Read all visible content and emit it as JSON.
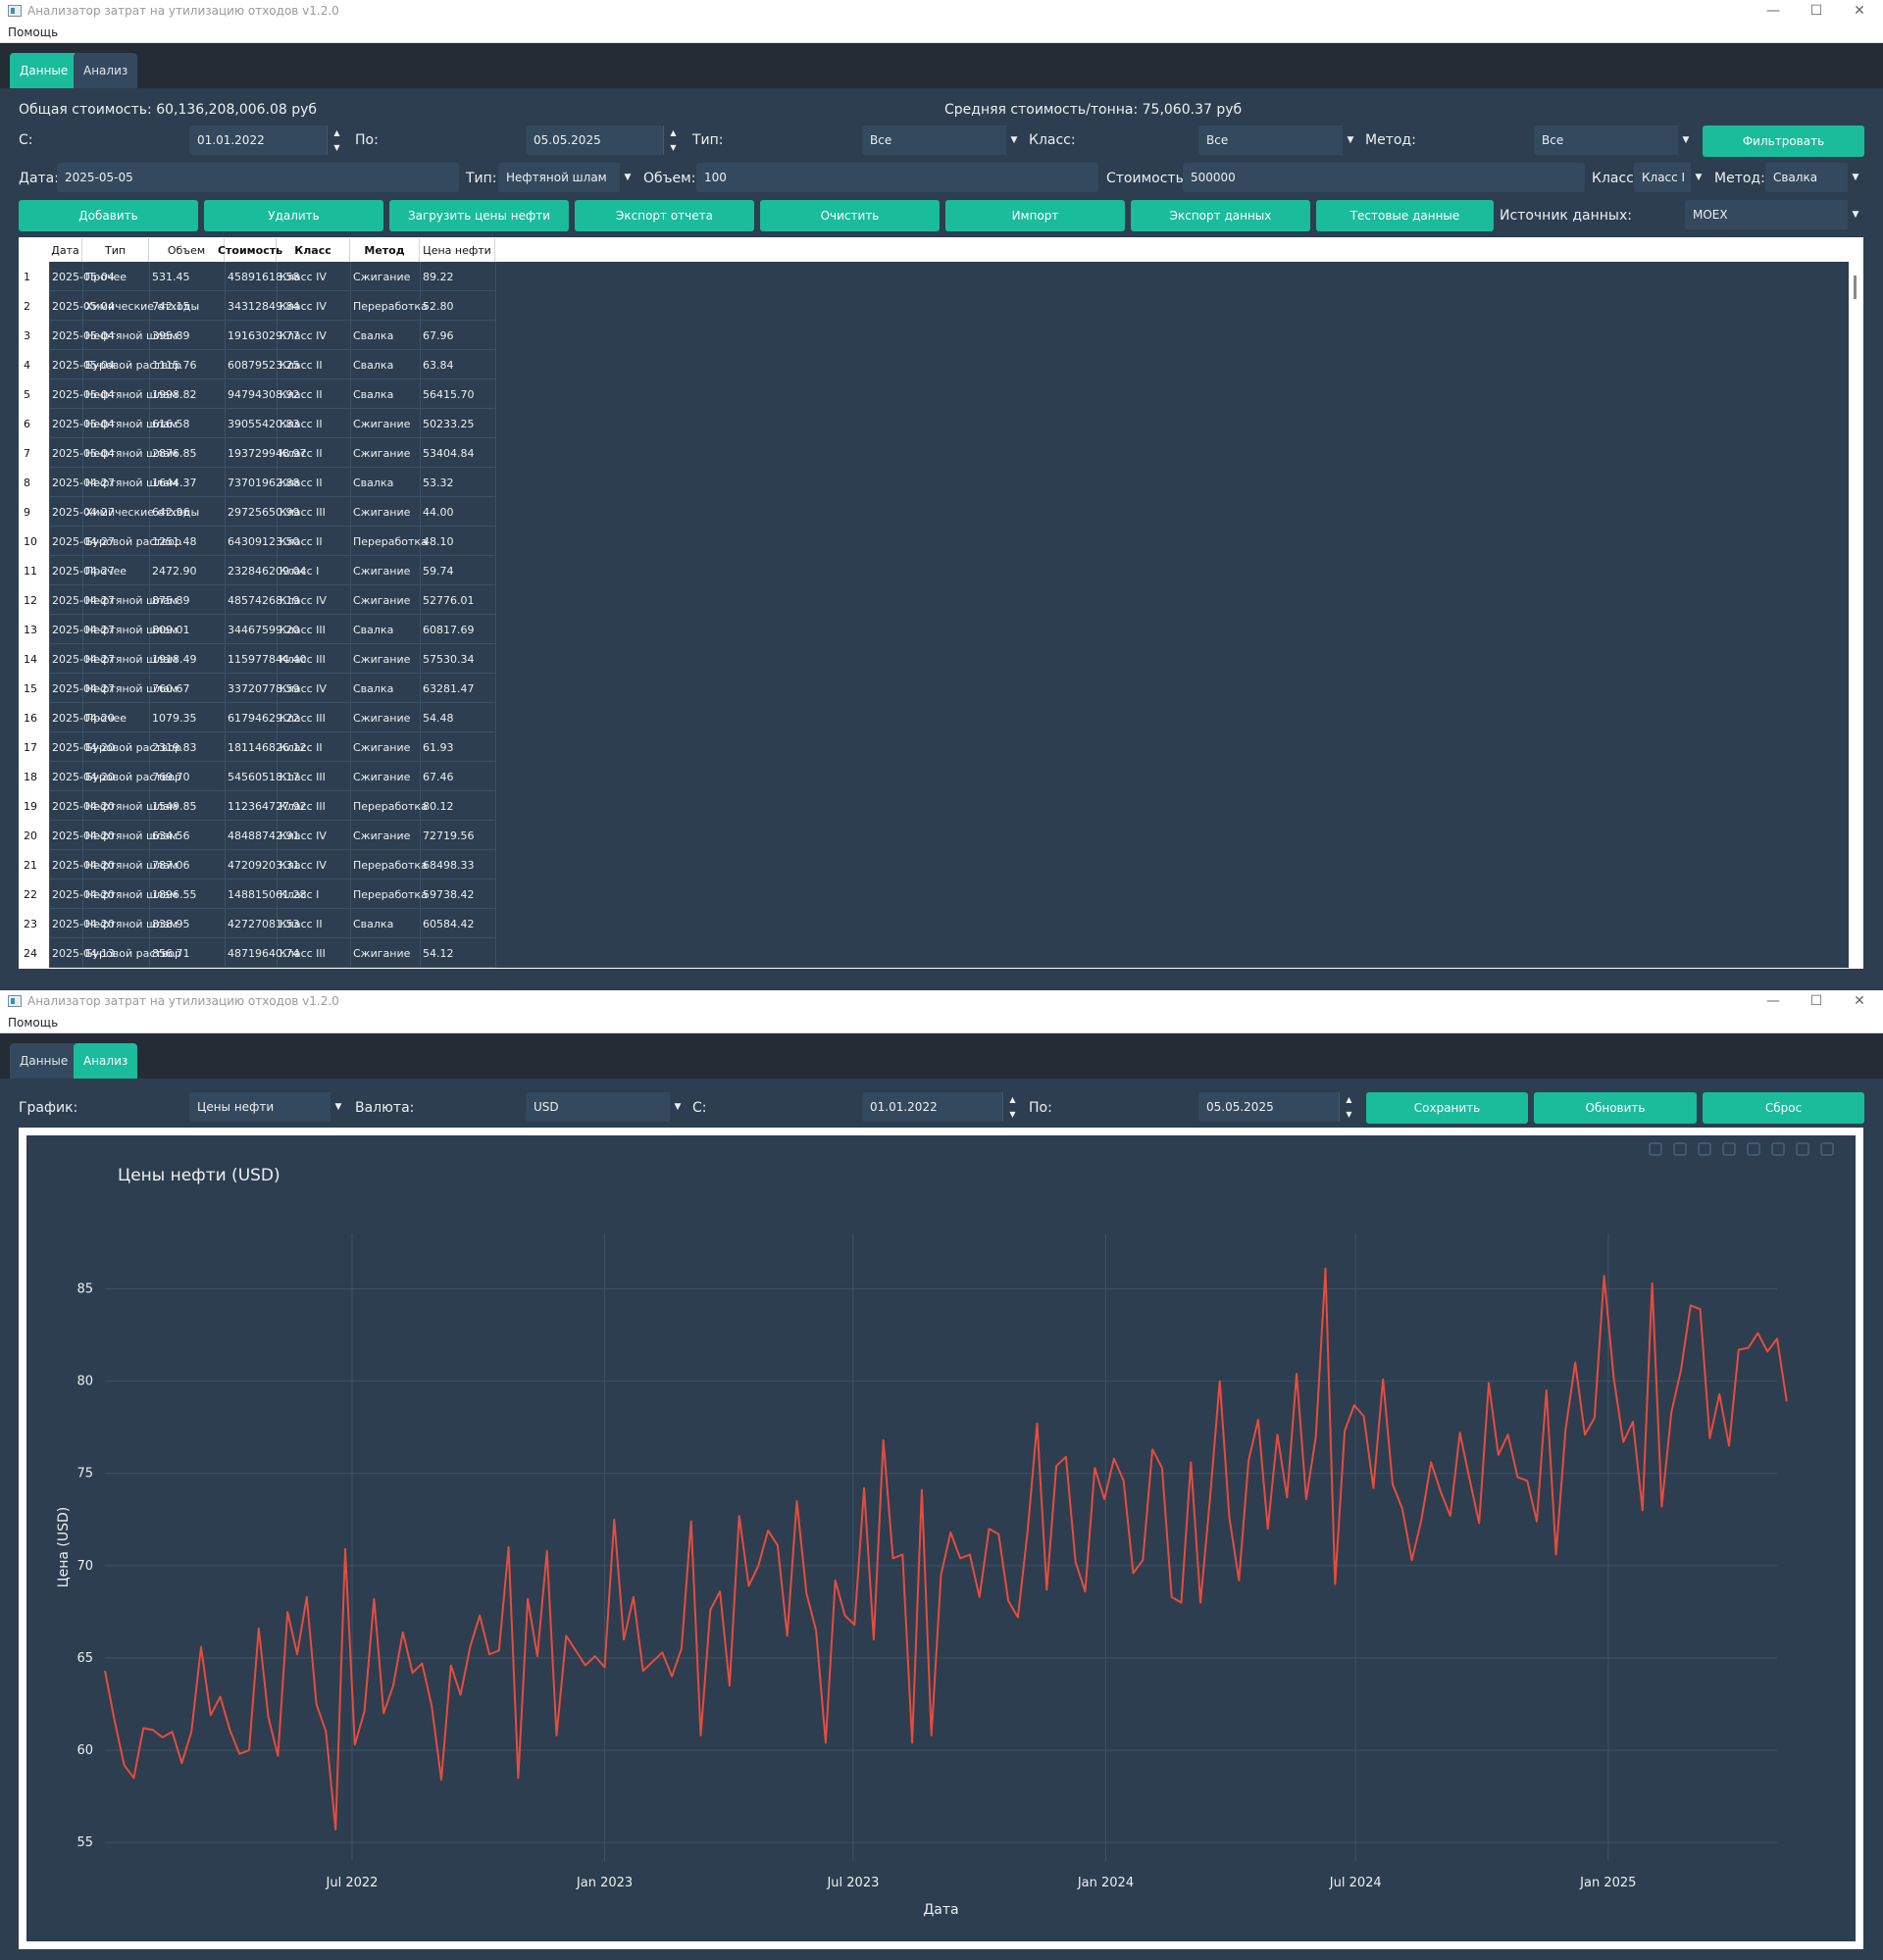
{
  "app_title": "Анализатор затрат на утилизацию отходов v1.2.0",
  "menu": {
    "help": "Помощь"
  },
  "tabs": {
    "data": "Данные",
    "analysis": "Анализ"
  },
  "window_controls": {
    "minimize": "—",
    "maximize": "☐",
    "close": "✕"
  },
  "summary": {
    "total_cost": "Общая стоимость: 60,136,208,006.08 руб",
    "avg_cost": "Средняя стоимость/тонна: 75,060.37 руб"
  },
  "filters": {
    "from_label": "С:",
    "from_value": "01.01.2022",
    "to_label": "По:",
    "to_value": "05.05.2025",
    "type_label": "Тип:",
    "type_value": "Все",
    "class_label": "Класс:",
    "class_value": "Все",
    "method_label": "Метод:",
    "method_value": "Все",
    "filter_button": "Фильтровать"
  },
  "entry": {
    "date_label": "Дата:",
    "date_value": "2025-05-05",
    "type_label": "Тип:",
    "type_value": "Нефтяной шлам",
    "volume_label": "Объем:",
    "volume_value": "100",
    "cost_label": "Стоимость:",
    "cost_value": "500000",
    "class_label": "Класс:",
    "class_value": "Класс I",
    "method_label": "Метод:",
    "method_value": "Свалка"
  },
  "actions": {
    "add": "Добавить",
    "delete": "Удалить",
    "load_oil": "Загрузить цены нефти",
    "export_report": "Экспорт отчета",
    "clear": "Очистить",
    "import": "Импорт",
    "export_data": "Экспорт данных",
    "test_data": "Тестовые данные",
    "source_label": "Источник данных:",
    "source_value": "MOEX"
  },
  "table": {
    "headers": [
      "Дата",
      "Тип",
      "Объем",
      "Стоимость",
      "Класс",
      "Метод",
      "Цена нефти"
    ],
    "rows": [
      [
        "2025-05-04",
        "Прочее",
        "531.45",
        "45891618.58",
        "Класс IV",
        "Сжигание",
        "89.22"
      ],
      [
        "2025-05-04",
        "Химические отходы",
        "742.15",
        "34312849.84",
        "Класс IV",
        "Переработка",
        "52.80"
      ],
      [
        "2025-05-04",
        "Нефтяной шлам",
        "395.89",
        "19163029.77",
        "Класс IV",
        "Свалка",
        "67.96"
      ],
      [
        "2025-05-04",
        "Буровой раствор",
        "1115.76",
        "60879523.25",
        "Класс II",
        "Свалка",
        "63.84"
      ],
      [
        "2025-05-04",
        "Нефтяной шлам",
        "1998.82",
        "94794308.92",
        "Класс II",
        "Свалка",
        "56415.70"
      ],
      [
        "2025-05-04",
        "Нефтяной шлам",
        "616.58",
        "39055420.83",
        "Класс II",
        "Сжигание",
        "50233.25"
      ],
      [
        "2025-05-04",
        "Нефтяной шлам",
        "2876.85",
        "193729948.97",
        "Класс II",
        "Сжигание",
        "53404.84"
      ],
      [
        "2025-04-27",
        "Нефтяной шлам",
        "1644.37",
        "73701962.88",
        "Класс II",
        "Свалка",
        "53.32"
      ],
      [
        "2025-04-27",
        "Химические отходы",
        "642.96",
        "29725650.99",
        "Класс III",
        "Сжигание",
        "44.00"
      ],
      [
        "2025-04-27",
        "Буровой раствор",
        "1251.48",
        "64309123.50",
        "Класс II",
        "Переработка",
        "48.10"
      ],
      [
        "2025-04-27",
        "Прочее",
        "2472.90",
        "232846209.04",
        "Класс I",
        "Сжигание",
        "59.74"
      ],
      [
        "2025-04-27",
        "Нефтяной шлам",
        "875.89",
        "48574268.19",
        "Класс IV",
        "Сжигание",
        "52776.01"
      ],
      [
        "2025-04-27",
        "Нефтяной шлам",
        "809.01",
        "34467599.20",
        "Класс III",
        "Свалка",
        "60817.69"
      ],
      [
        "2025-04-27",
        "Нефтяной шлам",
        "1918.49",
        "115977844.40",
        "Класс III",
        "Сжигание",
        "57530.34"
      ],
      [
        "2025-04-27",
        "Нефтяной шлам",
        "760.67",
        "33720778.59",
        "Класс IV",
        "Свалка",
        "63281.47"
      ],
      [
        "2025-04-20",
        "Прочее",
        "1079.35",
        "61794629.22",
        "Класс III",
        "Сжигание",
        "54.48"
      ],
      [
        "2025-04-20",
        "Буровой раствор",
        "2319.83",
        "181146826.12",
        "Класс II",
        "Сжигание",
        "61.93"
      ],
      [
        "2025-04-20",
        "Буровой раствор",
        "769.70",
        "54560518.17",
        "Класс III",
        "Сжигание",
        "67.46"
      ],
      [
        "2025-04-20",
        "Нефтяной шлам",
        "1549.85",
        "112364727.92",
        "Класс III",
        "Переработка",
        "80.12"
      ],
      [
        "2025-04-20",
        "Нефтяной шлам",
        "634.56",
        "48488742.91",
        "Класс IV",
        "Сжигание",
        "72719.56"
      ],
      [
        "2025-04-20",
        "Нефтяной шлам",
        "787.06",
        "47209203.31",
        "Класс IV",
        "Переработка",
        "68498.33"
      ],
      [
        "2025-04-20",
        "Нефтяной шлам",
        "1896.55",
        "148815061.28",
        "Класс I",
        "Переработка",
        "59738.42"
      ],
      [
        "2025-04-20",
        "Нефтяной шлам",
        "838.95",
        "42727081.53",
        "Класс II",
        "Свалка",
        "60584.42"
      ],
      [
        "2025-04-13",
        "Буровой раствор",
        "856.71",
        "48719640.74",
        "Класс III",
        "Сжигание",
        "54.12"
      ]
    ]
  },
  "analysis": {
    "chart_label": "График:",
    "chart_value": "Цены нефти",
    "currency_label": "Валюта:",
    "currency_value": "USD",
    "from_label": "С:",
    "from_value": "01.01.2022",
    "to_label": "По:",
    "to_value": "05.05.2025",
    "save": "Сохранить",
    "refresh": "Обновить",
    "reset": "Сброс"
  },
  "colors": {
    "accent": "#1abc9c",
    "line": "#e74c3c",
    "panel": "#2c3e50"
  },
  "chart_data": {
    "type": "line",
    "title": "Цены нефти (USD)",
    "xlabel": "Дата",
    "ylabel": "Цена (USD)",
    "xlim": [
      "2022-01-02",
      "2025-05-04"
    ],
    "ylim": [
      54,
      88
    ],
    "x_ticks": [
      "Jul 2022",
      "Jan 2023",
      "Jul 2023",
      "Jan 2024",
      "Jul 2024",
      "Jan 2025"
    ],
    "x_tick_dates": [
      "2022-07-01",
      "2023-01-01",
      "2023-07-01",
      "2024-01-01",
      "2024-07-01",
      "2025-01-01"
    ],
    "y_ticks": [
      55,
      60,
      65,
      70,
      75,
      80,
      85
    ],
    "grid": true,
    "series": [
      {
        "name": "",
        "x_start": "2022-01-02",
        "x_step_days": 7,
        "values": [
          64.3,
          61.6,
          59.2,
          58.5,
          61.2,
          61.1,
          60.7,
          61.0,
          59.3,
          61.0,
          65.6,
          61.9,
          62.9,
          61.1,
          59.8,
          60.0,
          66.6,
          61.8,
          59.7,
          67.5,
          65.2,
          68.3,
          62.5,
          61.0,
          55.7,
          70.9,
          60.3,
          62.1,
          68.2,
          62.0,
          63.5,
          66.4,
          64.2,
          64.7,
          62.4,
          58.4,
          64.6,
          63.0,
          65.6,
          67.3,
          65.2,
          65.4,
          71.0,
          58.5,
          68.2,
          65.1,
          70.8,
          60.8,
          66.2,
          65.4,
          64.6,
          65.1,
          64.5,
          72.5,
          66.0,
          68.3,
          64.3,
          64.8,
          65.3,
          64.0,
          65.5,
          72.4,
          60.8,
          67.6,
          68.6,
          63.5,
          72.7,
          68.9,
          70.0,
          71.9,
          71.1,
          66.2,
          73.5,
          68.5,
          66.5,
          60.4,
          69.2,
          67.3,
          66.8,
          74.2,
          66.0,
          76.8,
          70.4,
          70.6,
          60.4,
          74.1,
          60.8,
          69.5,
          71.8,
          70.4,
          70.6,
          68.3,
          72.0,
          71.7,
          68.1,
          67.2,
          71.8,
          77.7,
          68.7,
          75.4,
          75.9,
          70.2,
          68.6,
          75.3,
          73.6,
          75.8,
          74.6,
          69.6,
          70.3,
          76.3,
          75.3,
          68.3,
          68.0,
          75.6,
          68.0,
          73.7,
          80.0,
          72.6,
          69.2,
          75.7,
          77.9,
          72.0,
          77.1,
          73.7,
          80.4,
          73.6,
          77.0,
          86.1,
          69.0,
          77.3,
          78.7,
          78.1,
          74.2,
          80.1,
          74.4,
          73.1,
          70.3,
          72.5,
          75.6,
          74.0,
          72.7,
          77.2,
          74.7,
          72.3,
          79.9,
          76.0,
          77.1,
          74.8,
          74.6,
          72.4,
          79.5,
          70.6,
          77.4,
          81.0,
          77.1,
          78.0,
          85.7,
          80.2,
          76.7,
          77.8,
          73.0,
          85.3,
          73.2,
          78.3,
          80.6,
          84.1,
          83.9,
          76.9,
          79.3,
          76.5,
          81.7,
          81.8,
          82.6,
          81.6,
          82.3,
          78.9
        ]
      }
    ]
  }
}
